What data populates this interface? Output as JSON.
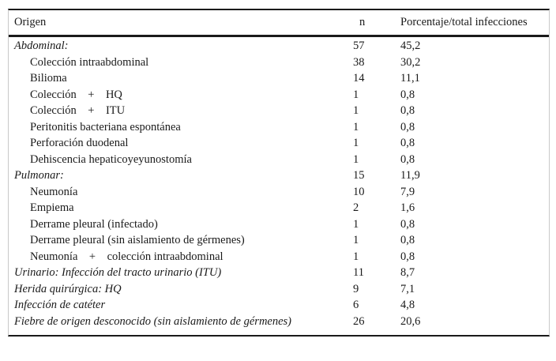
{
  "table": {
    "columns": [
      {
        "label": "Origen"
      },
      {
        "label": "n"
      },
      {
        "label": "Porcentaje/total infecciones"
      }
    ],
    "rows": [
      {
        "label": "Abdominal:",
        "n": "57",
        "pct": "45,2",
        "type": "category"
      },
      {
        "label": "Colección intraabdominal",
        "n": "38",
        "pct": "30,2",
        "type": "sub"
      },
      {
        "label": "Bilioma",
        "n": "14",
        "pct": "11,1",
        "type": "sub"
      },
      {
        "label": "Colección    +    HQ",
        "n": "1",
        "pct": "0,8",
        "type": "sub"
      },
      {
        "label": "Colección    +    ITU",
        "n": "1",
        "pct": "0,8",
        "type": "sub"
      },
      {
        "label": "Peritonitis bacteriana espontánea",
        "n": "1",
        "pct": "0,8",
        "type": "sub"
      },
      {
        "label": "Perforación duodenal",
        "n": "1",
        "pct": "0,8",
        "type": "sub"
      },
      {
        "label": "Dehiscencia hepaticoyeyunostomía",
        "n": "1",
        "pct": "0,8",
        "type": "sub"
      },
      {
        "label": "Pulmonar:",
        "n": "15",
        "pct": "11,9",
        "type": "category"
      },
      {
        "label": "Neumonía",
        "n": "10",
        "pct": "7,9",
        "type": "sub"
      },
      {
        "label": "Empiema",
        "n": "2",
        "pct": "1,6",
        "type": "sub"
      },
      {
        "label": "Derrame pleural (infectado)",
        "n": "1",
        "pct": "0,8",
        "type": "sub"
      },
      {
        "label": "Derrame pleural (sin aislamiento de gérmenes)",
        "n": "1",
        "pct": "0,8",
        "type": "sub"
      },
      {
        "label": "Neumonía    +    colección intraabdominal",
        "n": "1",
        "pct": "0,8",
        "type": "sub"
      },
      {
        "label": "Urinario: Infección del tracto urinario (ITU)",
        "n": "11",
        "pct": "8,7",
        "type": "category"
      },
      {
        "label": "Herida quirúrgica: HQ",
        "n": "9",
        "pct": "7,1",
        "type": "category"
      },
      {
        "label": "Infección de catéter",
        "n": "6",
        "pct": "4,8",
        "type": "category"
      },
      {
        "label": "Fiebre de origen desconocido (sin aislamiento de gérmenes)",
        "n": "26",
        "pct": "20,6",
        "type": "category"
      }
    ],
    "colors": {
      "rule_dark": "#1a1a1a",
      "border_light": "#c9c9c9",
      "text": "#1a1a1a",
      "background": "#ffffff"
    }
  }
}
